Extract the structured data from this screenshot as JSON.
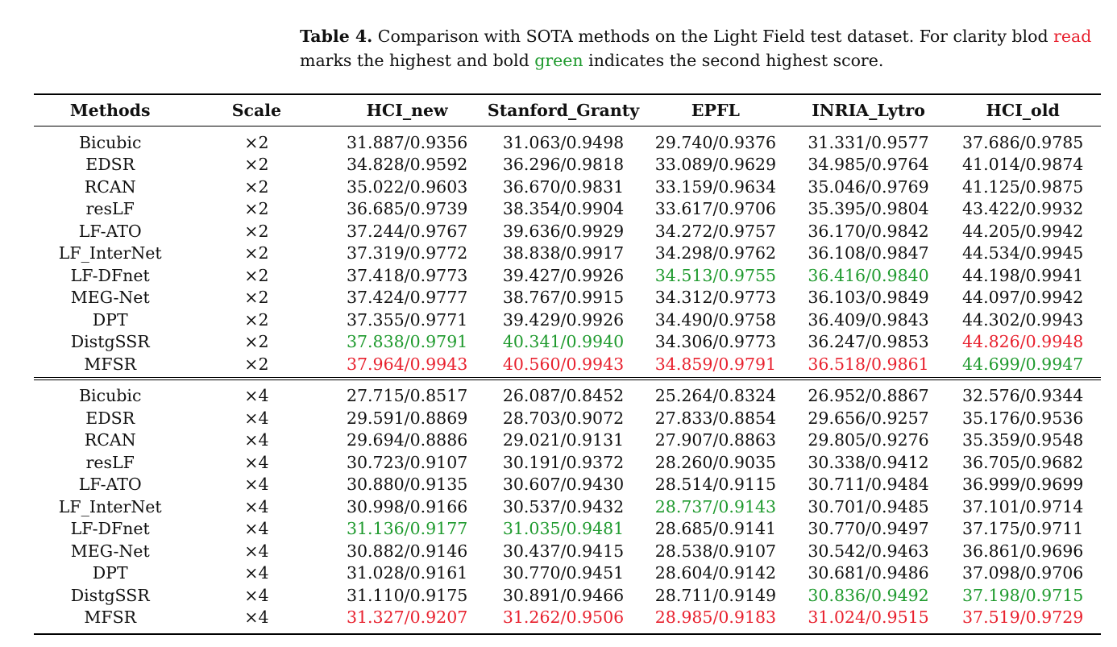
{
  "caption": {
    "label": "Table 4.",
    "text_before_red": " Comparison with SOTA methods on the Light Field test dataset. For clarity blod ",
    "red_word": "read",
    "text_between": " marks the highest and bold ",
    "green_word": "green",
    "text_after": " indicates the second highest score."
  },
  "colors": {
    "best": "#e8212e",
    "second": "#1f9a2e"
  },
  "headers": [
    "Methods",
    "Scale",
    "HCI_new",
    "Stanford_Granty",
    "EPFL",
    "INRIA_Lytro",
    "HCI_old"
  ],
  "groups": [
    {
      "rows": [
        {
          "method": "Bicubic",
          "scale": "×2",
          "vals": [
            "31.887/0.9356",
            "31.063/0.9498",
            "29.740/0.9376",
            "31.331/0.9577",
            "37.686/0.9785"
          ],
          "marks": [
            "",
            "",
            "",
            "",
            ""
          ]
        },
        {
          "method": "EDSR",
          "scale": "×2",
          "vals": [
            "34.828/0.9592",
            "36.296/0.9818",
            "33.089/0.9629",
            "34.985/0.9764",
            "41.014/0.9874"
          ],
          "marks": [
            "",
            "",
            "",
            "",
            ""
          ]
        },
        {
          "method": "RCAN",
          "scale": "×2",
          "vals": [
            "35.022/0.9603",
            "36.670/0.9831",
            "33.159/0.9634",
            "35.046/0.9769",
            "41.125/0.9875"
          ],
          "marks": [
            "",
            "",
            "",
            "",
            ""
          ]
        },
        {
          "method": "resLF",
          "scale": "×2",
          "vals": [
            "36.685/0.9739",
            "38.354/0.9904",
            "33.617/0.9706",
            "35.395/0.9804",
            "43.422/0.9932"
          ],
          "marks": [
            "",
            "",
            "",
            "",
            ""
          ]
        },
        {
          "method": "LF-ATO",
          "scale": "×2",
          "vals": [
            "37.244/0.9767",
            "39.636/0.9929",
            "34.272/0.9757",
            "36.170/0.9842",
            "44.205/0.9942"
          ],
          "marks": [
            "",
            "",
            "",
            "",
            ""
          ]
        },
        {
          "method": "LF_InterNet",
          "scale": "×2",
          "vals": [
            "37.319/0.9772",
            "38.838/0.9917",
            "34.298/0.9762",
            "36.108/0.9847",
            "44.534/0.9945"
          ],
          "marks": [
            "",
            "",
            "",
            "",
            ""
          ]
        },
        {
          "method": "LF-DFnet",
          "scale": "×2",
          "vals": [
            "37.418/0.9773",
            "39.427/0.9926",
            "34.513/0.9755",
            "36.416/0.9840",
            "44.198/0.9941"
          ],
          "marks": [
            "",
            "",
            "second",
            "second",
            ""
          ]
        },
        {
          "method": "MEG-Net",
          "scale": "×2",
          "vals": [
            "37.424/0.9777",
            "38.767/0.9915",
            "34.312/0.9773",
            "36.103/0.9849",
            "44.097/0.9942"
          ],
          "marks": [
            "",
            "",
            "",
            "",
            ""
          ]
        },
        {
          "method": "DPT",
          "scale": "×2",
          "vals": [
            "37.355/0.9771",
            "39.429/0.9926",
            "34.490/0.9758",
            "36.409/0.9843",
            "44.302/0.9943"
          ],
          "marks": [
            "",
            "",
            "",
            "",
            ""
          ]
        },
        {
          "method": "DistgSSR",
          "scale": "×2",
          "vals": [
            "37.838/0.9791",
            "40.341/0.9940",
            "34.306/0.9773",
            "36.247/0.9853",
            "44.826/0.9948"
          ],
          "marks": [
            "second",
            "second",
            "",
            "",
            "best"
          ]
        },
        {
          "method": "MFSR",
          "scale": "×2",
          "vals": [
            "37.964/0.9943",
            "40.560/0.9943",
            "34.859/0.9791",
            "36.518/0.9861",
            "44.699/0.9947"
          ],
          "marks": [
            "best",
            "best",
            "best",
            "best",
            "second"
          ]
        }
      ]
    },
    {
      "rows": [
        {
          "method": "Bicubic",
          "scale": "×4",
          "vals": [
            "27.715/0.8517",
            "26.087/0.8452",
            "25.264/0.8324",
            "26.952/0.8867",
            "32.576/0.9344"
          ],
          "marks": [
            "",
            "",
            "",
            "",
            ""
          ]
        },
        {
          "method": "EDSR",
          "scale": "×4",
          "vals": [
            "29.591/0.8869",
            "28.703/0.9072",
            "27.833/0.8854",
            "29.656/0.9257",
            "35.176/0.9536"
          ],
          "marks": [
            "",
            "",
            "",
            "",
            ""
          ]
        },
        {
          "method": "RCAN",
          "scale": "×4",
          "vals": [
            "29.694/0.8886",
            "29.021/0.9131",
            "27.907/0.8863",
            "29.805/0.9276",
            "35.359/0.9548"
          ],
          "marks": [
            "",
            "",
            "",
            "",
            ""
          ]
        },
        {
          "method": "resLF",
          "scale": "×4",
          "vals": [
            "30.723/0.9107",
            "30.191/0.9372",
            "28.260/0.9035",
            "30.338/0.9412",
            "36.705/0.9682"
          ],
          "marks": [
            "",
            "",
            "",
            "",
            ""
          ]
        },
        {
          "method": "LF-ATO",
          "scale": "×4",
          "vals": [
            "30.880/0.9135",
            "30.607/0.9430",
            "28.514/0.9115",
            "30.711/0.9484",
            "36.999/0.9699"
          ],
          "marks": [
            "",
            "",
            "",
            "",
            ""
          ]
        },
        {
          "method": "LF_InterNet",
          "scale": "×4",
          "vals": [
            "30.998/0.9166",
            "30.537/0.9432",
            "28.737/0.9143",
            "30.701/0.9485",
            "37.101/0.9714"
          ],
          "marks": [
            "",
            "",
            "second",
            "",
            ""
          ]
        },
        {
          "method": "LF-DFnet",
          "scale": "×4",
          "vals": [
            "31.136/0.9177",
            "31.035/0.9481",
            "28.685/0.9141",
            "30.770/0.9497",
            "37.175/0.9711"
          ],
          "marks": [
            "second",
            "second",
            "",
            "",
            ""
          ]
        },
        {
          "method": "MEG-Net",
          "scale": "×4",
          "vals": [
            "30.882/0.9146",
            "30.437/0.9415",
            "28.538/0.9107",
            "30.542/0.9463",
            "36.861/0.9696"
          ],
          "marks": [
            "",
            "",
            "",
            "",
            ""
          ]
        },
        {
          "method": "DPT",
          "scale": "×4",
          "vals": [
            "31.028/0.9161",
            "30.770/0.9451",
            "28.604/0.9142",
            "30.681/0.9486",
            "37.098/0.9706"
          ],
          "marks": [
            "",
            "",
            "",
            "",
            ""
          ]
        },
        {
          "method": "DistgSSR",
          "scale": "×4",
          "vals": [
            "31.110/0.9175",
            "30.891/0.9466",
            "28.711/0.9149",
            "30.836/0.9492",
            "37.198/0.9715"
          ],
          "marks": [
            "",
            "",
            "",
            "second",
            "second"
          ]
        },
        {
          "method": "MFSR",
          "scale": "×4",
          "vals": [
            "31.327/0.9207",
            "31.262/0.9506",
            "28.985/0.9183",
            "31.024/0.9515",
            "37.519/0.9729"
          ],
          "marks": [
            "best",
            "best",
            "best",
            "best",
            "best"
          ]
        }
      ]
    }
  ]
}
